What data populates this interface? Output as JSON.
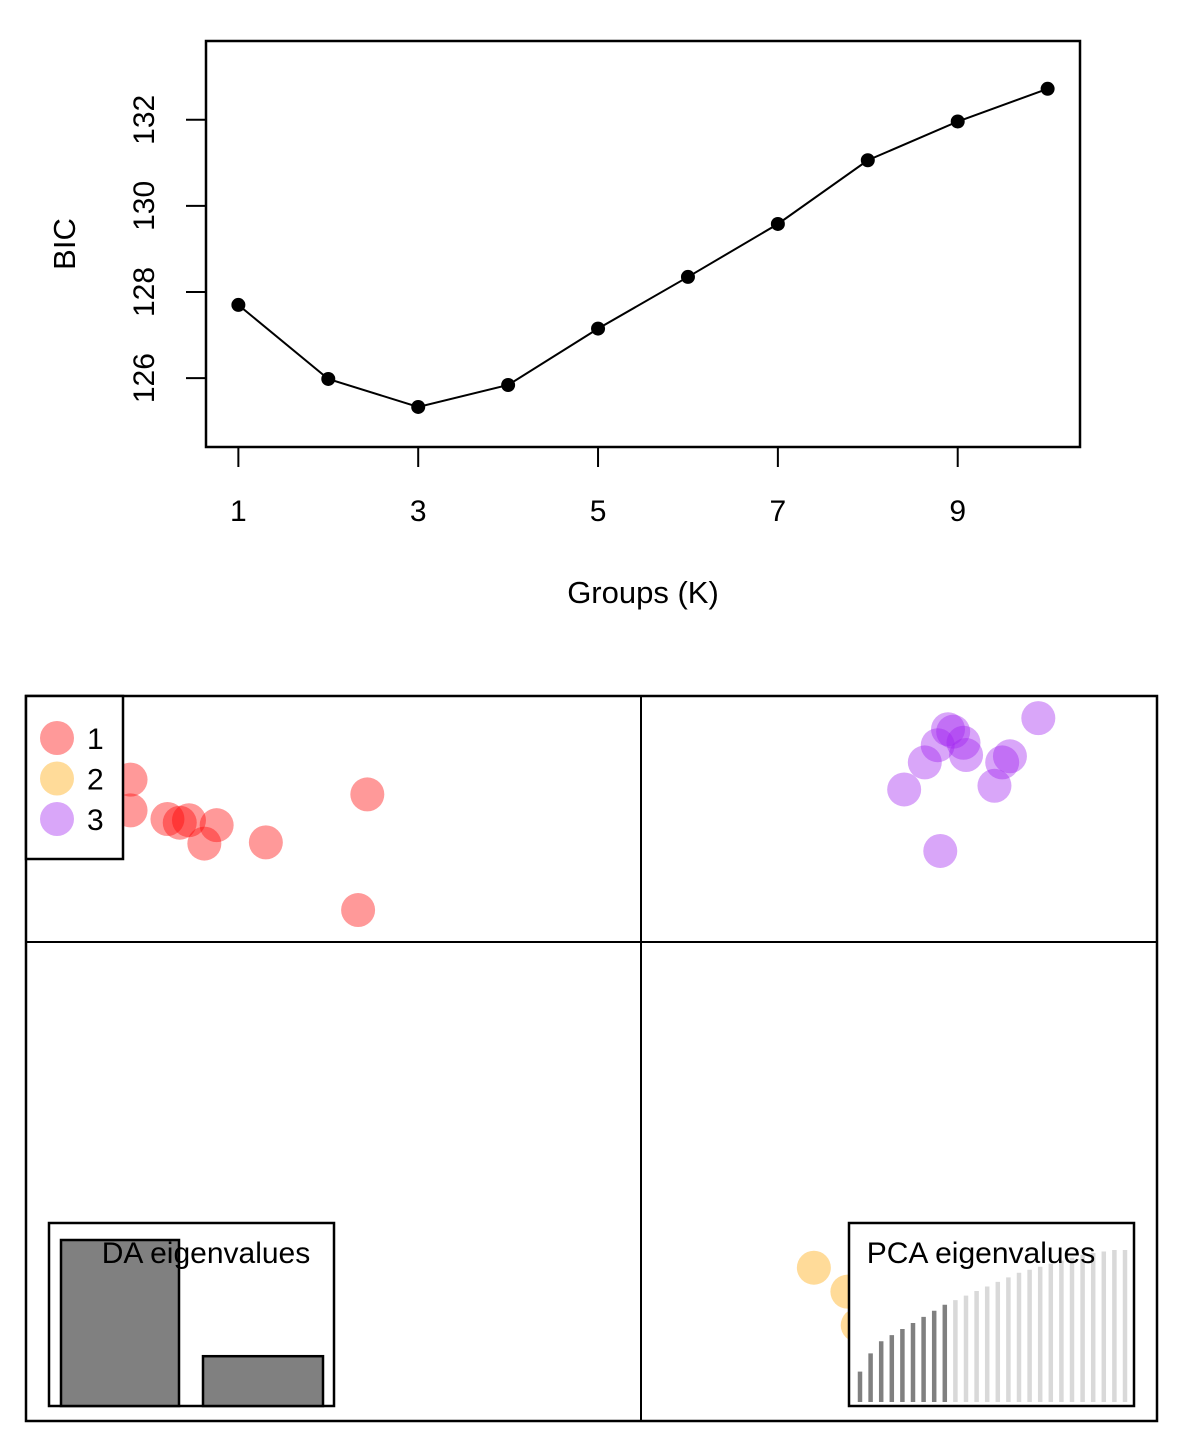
{
  "chart_data": [
    {
      "type": "line",
      "xlabel": "Groups (K)",
      "ylabel": "BIC",
      "x": [
        1,
        2,
        3,
        4,
        5,
        6,
        7,
        8,
        9,
        10
      ],
      "values": [
        127.7,
        125.98,
        125.33,
        125.84,
        127.15,
        128.35,
        129.58,
        131.06,
        131.96,
        132.72
      ],
      "xticks": [
        "1",
        "3",
        "5",
        "7",
        "9"
      ],
      "yticks": [
        "126",
        "128",
        "130",
        "132"
      ],
      "xlim": [
        0.64,
        10.36
      ],
      "ylim": [
        124.4,
        133.83
      ],
      "grid": false,
      "line_color": "#000000"
    },
    {
      "type": "scatter",
      "xlabel": "",
      "ylabel": "",
      "xlim": [
        -10,
        10
      ],
      "ylim": [
        -10,
        10
      ],
      "groups": [
        {
          "name": "1",
          "color": "#ff0000",
          "points": [
            [
              -8.3,
              6.6
            ],
            [
              -8.3,
              5.35
            ],
            [
              -7.7,
              5.0
            ],
            [
              -7.5,
              4.85
            ],
            [
              -7.35,
              4.95
            ],
            [
              -7.1,
              4.0
            ],
            [
              -6.9,
              4.75
            ],
            [
              -6.1,
              4.05
            ],
            [
              -4.45,
              6.0
            ],
            [
              -4.6,
              1.3
            ]
          ]
        },
        {
          "name": "2",
          "color": "#ffa500",
          "points": [
            [
              3.35,
              -6.8
            ],
            [
              4.0,
              -7.3
            ],
            [
              4.35,
              -7.75
            ],
            [
              4.2,
              -8.0
            ],
            [
              4.5,
              -8.5
            ]
          ]
        },
        {
          "name": "3",
          "color": "#a020f0",
          "points": [
            [
              5.1,
              6.2
            ],
            [
              5.5,
              7.3
            ],
            [
              5.75,
              8.0
            ],
            [
              5.95,
              8.65
            ],
            [
              6.05,
              8.55
            ],
            [
              6.25,
              8.1
            ],
            [
              6.3,
              7.6
            ],
            [
              5.8,
              3.7
            ],
            [
              6.85,
              6.35
            ],
            [
              7.0,
              7.3
            ],
            [
              7.15,
              7.55
            ],
            [
              7.7,
              9.1
            ]
          ]
        }
      ],
      "legend": {
        "position": "top-left",
        "entries": [
          "1",
          "2",
          "3"
        ]
      },
      "inset_da": {
        "title": "DA eigenvalues",
        "values": [
          10.0,
          3.0
        ]
      },
      "inset_pca": {
        "title": "PCA eigenvalues",
        "retained": 9,
        "values": [
          2.0,
          3.2,
          4.0,
          4.4,
          4.8,
          5.2,
          5.6,
          6.0,
          6.4,
          6.7,
          7.0,
          7.3,
          7.6,
          7.9,
          8.2,
          8.5,
          8.7,
          8.9,
          9.1,
          9.3,
          9.5,
          9.7,
          9.8,
          9.9,
          10.0,
          10.0
        ],
        "retained_color": "#808080",
        "other_color": "#d9d9d9"
      },
      "da_bar_color": "#808080"
    }
  ]
}
